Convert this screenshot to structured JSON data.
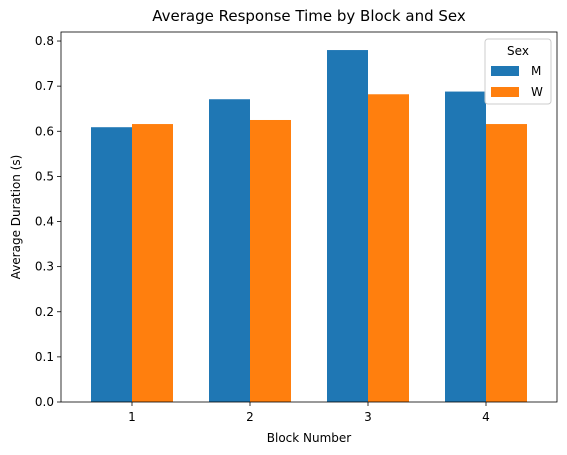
{
  "chart_data": {
    "type": "bar",
    "title": "Average Response Time by Block and Sex",
    "xlabel": "Block Number",
    "ylabel": "Average Duration (s)",
    "categories": [
      "1",
      "2",
      "3",
      "4"
    ],
    "series": [
      {
        "name": "M",
        "values": [
          0.609,
          0.671,
          0.78,
          0.688
        ],
        "color": "#1f77b4"
      },
      {
        "name": "W",
        "values": [
          0.616,
          0.625,
          0.682,
          0.616
        ],
        "color": "#ff7f0e"
      }
    ],
    "ylim": [
      0,
      0.82
    ],
    "yticks": [
      "0.0",
      "0.1",
      "0.2",
      "0.3",
      "0.4",
      "0.5",
      "0.6",
      "0.7",
      "0.8"
    ],
    "grid": false,
    "legend": {
      "title": "Sex",
      "placement": "top-right"
    }
  }
}
